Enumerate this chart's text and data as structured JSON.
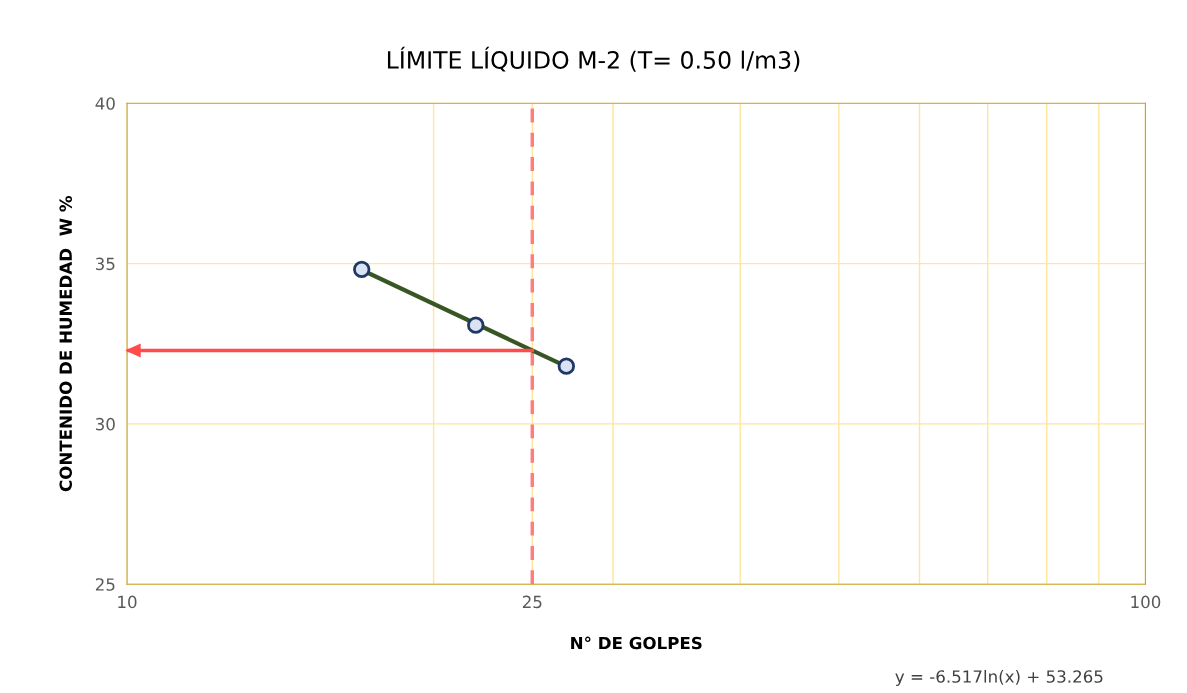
{
  "chart_data": {
    "type": "scatter",
    "title": "LÍMITE LÍQUIDO M-2 (T= 0.50 l/m3)",
    "xlabel": "N° DE GOLPES",
    "ylabel": "CONTENIDO DE HUMEDAD  W %",
    "series": [
      {
        "color": "#1f3864",
        "x": [
          17,
          22,
          27
        ],
        "values": [
          34.82,
          33.08,
          31.8
        ],
        "marker": "circle"
      },
      {
        "type": "line",
        "color": "#375623",
        "x": [
          17,
          27
        ],
        "values": [
          34.8,
          31.79
        ],
        "marker": "none",
        "line_style": "solid"
      },
      {
        "type": "line",
        "color": "#ff4b4b",
        "x": [
          25,
          10
        ],
        "values": [
          32.29,
          32.29
        ],
        "marker": "none",
        "line_style": "solid"
      }
    ],
    "log": "x",
    "xlim": [
      10,
      100
    ],
    "ylim": [
      25,
      40
    ],
    "xticks": [
      10,
      {
        "value": 20,
        "label": null
      },
      25,
      {
        "value": 30,
        "label": null
      },
      {
        "value": 40,
        "label": null
      },
      {
        "value": 50,
        "label": null
      },
      {
        "value": 60,
        "label": null
      },
      {
        "value": 70,
        "label": null
      },
      {
        "value": 80,
        "label": null
      },
      {
        "value": 90,
        "label": null
      },
      100
    ],
    "yticks": [
      25,
      30,
      35,
      40
    ],
    "grid": true,
    "ref_lines": [
      {
        "axis": "x",
        "value": 25,
        "color": "#ff7c80",
        "line_style": "dashed"
      }
    ],
    "annotations": [
      "y = -6.517ln(x) + 53.265"
    ]
  }
}
